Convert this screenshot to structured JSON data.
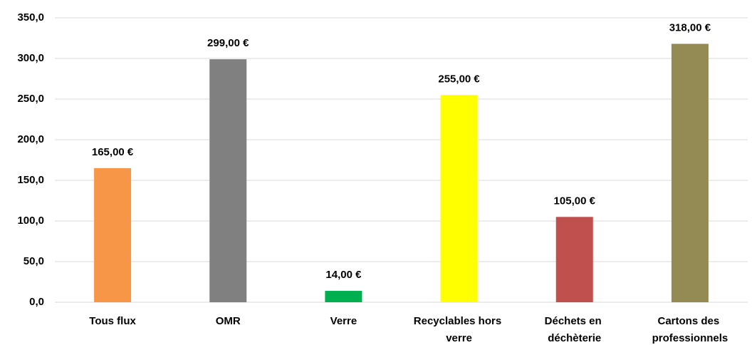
{
  "chart_data": {
    "type": "bar",
    "categories": [
      "Tous flux",
      "OMR",
      "Verre",
      "Recyclables hors verre",
      "Déchets en déchèterie",
      "Cartons des professionnels"
    ],
    "values": [
      165,
      299,
      14,
      255,
      105,
      318
    ],
    "value_labels": [
      "165,00 €",
      "299,00 €",
      "14,00 €",
      "255,00 €",
      "105,00 €",
      "318,00 €"
    ],
    "colors": [
      "#f79646",
      "#808080",
      "#00b050",
      "#ffff00",
      "#c0504d",
      "#948a54"
    ],
    "ylim": [
      0,
      350
    ],
    "yticks": [
      {
        "value": 0,
        "label": "0,0"
      },
      {
        "value": 50,
        "label": "50,0"
      },
      {
        "value": 100,
        "label": "100,0"
      },
      {
        "value": 150,
        "label": "150,0"
      },
      {
        "value": 200,
        "label": "200,0"
      },
      {
        "value": 250,
        "label": "250,0"
      },
      {
        "value": 300,
        "label": "300,0"
      },
      {
        "value": 350,
        "label": "350,0"
      }
    ],
    "grid": true
  }
}
